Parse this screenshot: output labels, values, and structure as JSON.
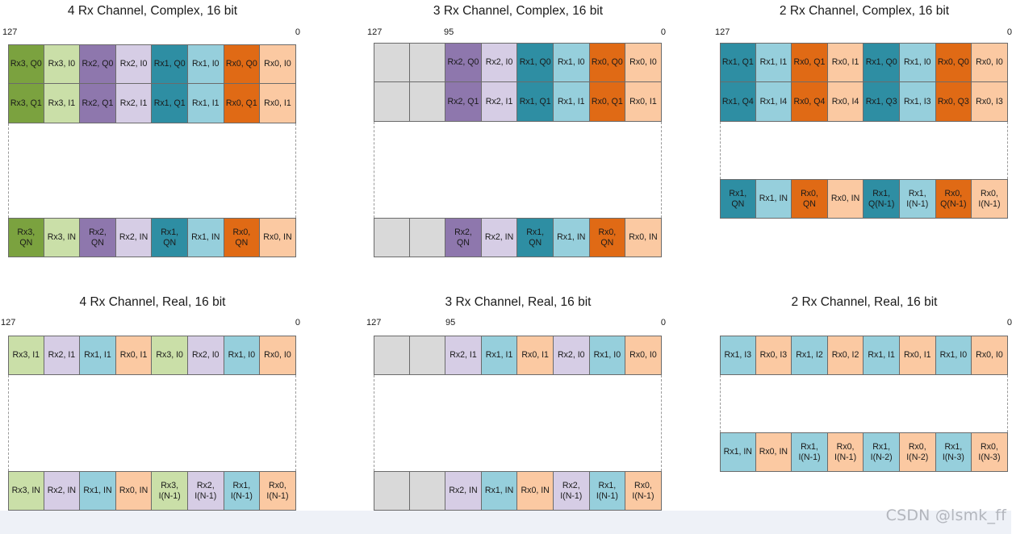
{
  "palette": {
    "rx3q": "#7ba23f",
    "rx3i": "#cadfa8",
    "rx2q": "#8e77ad",
    "rx2i": "#d6cde5",
    "rx1q": "#2e8ea3",
    "rx1i": "#96cfdc",
    "rx0q": "#e06a15",
    "rx0i": "#fbc9a2",
    "empty": "#d9d9d9"
  },
  "diagrams": [
    {
      "title": "4 Rx Channel, Complex, 16 bit",
      "msb": "127",
      "mid": "",
      "lsb": "0",
      "top_rows": [
        [
          [
            "Rx3, Q0",
            "rx3q"
          ],
          [
            "Rx3, I0",
            "rx3i"
          ],
          [
            "Rx2, Q0",
            "rx2q"
          ],
          [
            "Rx2, I0",
            "rx2i"
          ],
          [
            "Rx1, Q0",
            "rx1q"
          ],
          [
            "Rx1, I0",
            "rx1i"
          ],
          [
            "Rx0, Q0",
            "rx0q"
          ],
          [
            "Rx0, I0",
            "rx0i"
          ]
        ],
        [
          [
            "Rx3, Q1",
            "rx3q"
          ],
          [
            "Rx3, I1",
            "rx3i"
          ],
          [
            "Rx2, Q1",
            "rx2q"
          ],
          [
            "Rx2, I1",
            "rx2i"
          ],
          [
            "Rx1, Q1",
            "rx1q"
          ],
          [
            "Rx1, I1",
            "rx1i"
          ],
          [
            "Rx0, Q1",
            "rx0q"
          ],
          [
            "Rx0, I1",
            "rx0i"
          ]
        ]
      ],
      "bottom_rows": [
        [
          [
            "Rx3,\nQN",
            "rx3q"
          ],
          [
            "Rx3, IN",
            "rx3i"
          ],
          [
            "Rx2,\nQN",
            "rx2q"
          ],
          [
            "Rx2, IN",
            "rx2i"
          ],
          [
            "Rx1,\nQN",
            "rx1q"
          ],
          [
            "Rx1, IN",
            "rx1i"
          ],
          [
            "Rx0,\nQN",
            "rx0q"
          ],
          [
            "Rx0, IN",
            "rx0i"
          ]
        ]
      ]
    },
    {
      "title": "3 Rx Channel, Complex, 16 bit",
      "msb": "127",
      "mid": "95",
      "lsb": "0",
      "top_rows": [
        [
          [
            "",
            "empty"
          ],
          [
            "",
            "empty"
          ],
          [
            "Rx2, Q0",
            "rx2q"
          ],
          [
            "Rx2, I0",
            "rx2i"
          ],
          [
            "Rx1, Q0",
            "rx1q"
          ],
          [
            "Rx1, I0",
            "rx1i"
          ],
          [
            "Rx0, Q0",
            "rx0q"
          ],
          [
            "Rx0, I0",
            "rx0i"
          ]
        ],
        [
          [
            "",
            "empty"
          ],
          [
            "",
            "empty"
          ],
          [
            "Rx2, Q1",
            "rx2q"
          ],
          [
            "Rx2, I1",
            "rx2i"
          ],
          [
            "Rx1, Q1",
            "rx1q"
          ],
          [
            "Rx1, I1",
            "rx1i"
          ],
          [
            "Rx0, Q1",
            "rx0q"
          ],
          [
            "Rx0, I1",
            "rx0i"
          ]
        ]
      ],
      "bottom_rows": [
        [
          [
            "",
            "empty"
          ],
          [
            "",
            "empty"
          ],
          [
            "Rx2,\nQN",
            "rx2q"
          ],
          [
            "Rx2, IN",
            "rx2i"
          ],
          [
            "Rx1,\nQN",
            "rx1q"
          ],
          [
            "Rx1, IN",
            "rx1i"
          ],
          [
            "Rx0,\nQN",
            "rx0q"
          ],
          [
            "Rx0, IN",
            "rx0i"
          ]
        ]
      ]
    },
    {
      "title": "2 Rx Channel, Complex, 16 bit",
      "msb": "127",
      "mid": "",
      "lsb": "0",
      "top_rows": [
        [
          [
            "Rx1, Q1",
            "rx1q"
          ],
          [
            "Rx1, I1",
            "rx1i"
          ],
          [
            "Rx0, Q1",
            "rx0q"
          ],
          [
            "Rx0, I1",
            "rx0i"
          ],
          [
            "Rx1, Q0",
            "rx1q"
          ],
          [
            "Rx1, I0",
            "rx1i"
          ],
          [
            "Rx0, Q0",
            "rx0q"
          ],
          [
            "Rx0, I0",
            "rx0i"
          ]
        ],
        [
          [
            "Rx1, Q4",
            "rx1q"
          ],
          [
            "Rx1, I4",
            "rx1i"
          ],
          [
            "Rx0, Q4",
            "rx0q"
          ],
          [
            "Rx0, I4",
            "rx0i"
          ],
          [
            "Rx1, Q3",
            "rx1q"
          ],
          [
            "Rx1, I3",
            "rx1i"
          ],
          [
            "Rx0, Q3",
            "rx0q"
          ],
          [
            "Rx0, I3",
            "rx0i"
          ]
        ]
      ],
      "bottom_rows": [
        [
          [
            "Rx1,\nQN",
            "rx1q"
          ],
          [
            "Rx1, IN",
            "rx1i"
          ],
          [
            "Rx0,\nQN",
            "rx0q"
          ],
          [
            "Rx0, IN",
            "rx0i"
          ],
          [
            "Rx1,\nQ(N-1)",
            "rx1q"
          ],
          [
            "Rx1,\nI(N-1)",
            "rx1i"
          ],
          [
            "Rx0,\nQ(N-1)",
            "rx0q"
          ],
          [
            "Rx0,\nI(N-1)",
            "rx0i"
          ]
        ]
      ]
    },
    {
      "title": "4 Rx Channel, Real, 16 bit",
      "msb": "127",
      "mid": "",
      "lsb": "0",
      "top_rows": [
        [
          [
            "Rx3, I1",
            "rx3i"
          ],
          [
            "Rx2, I1",
            "rx2i"
          ],
          [
            "Rx1, I1",
            "rx1i"
          ],
          [
            "Rx0, I1",
            "rx0i"
          ],
          [
            "Rx3, I0",
            "rx3i"
          ],
          [
            "Rx2, I0",
            "rx2i"
          ],
          [
            "Rx1, I0",
            "rx1i"
          ],
          [
            "Rx0, I0",
            "rx0i"
          ]
        ]
      ],
      "bottom_rows": [
        [
          [
            "Rx3, IN",
            "rx3i"
          ],
          [
            "Rx2, IN",
            "rx2i"
          ],
          [
            "Rx1, IN",
            "rx1i"
          ],
          [
            "Rx0, IN",
            "rx0i"
          ],
          [
            "Rx3,\nI(N-1)",
            "rx3i"
          ],
          [
            "Rx2,\nI(N-1)",
            "rx2i"
          ],
          [
            "Rx1,\nI(N-1)",
            "rx1i"
          ],
          [
            "Rx0,\nI(N-1)",
            "rx0i"
          ]
        ]
      ]
    },
    {
      "title": "3 Rx Channel, Real, 16 bit",
      "msb": "127",
      "mid": "95",
      "lsb": "0",
      "top_rows": [
        [
          [
            "",
            "empty"
          ],
          [
            "",
            "empty"
          ],
          [
            "Rx2, I1",
            "rx2i"
          ],
          [
            "Rx1, I1",
            "rx1i"
          ],
          [
            "Rx0, I1",
            "rx0i"
          ],
          [
            "Rx2, I0",
            "rx2i"
          ],
          [
            "Rx1, I0",
            "rx1i"
          ],
          [
            "Rx0, I0",
            "rx0i"
          ]
        ]
      ],
      "bottom_rows": [
        [
          [
            "",
            "empty"
          ],
          [
            "",
            "empty"
          ],
          [
            "Rx2, IN",
            "rx2i"
          ],
          [
            "Rx1, IN",
            "rx1i"
          ],
          [
            "Rx0, IN",
            "rx0i"
          ],
          [
            "Rx2,\nI(N-1)",
            "rx2i"
          ],
          [
            "Rx1,\nI(N-1)",
            "rx1i"
          ],
          [
            "Rx0,\nI(N-1)",
            "rx0i"
          ]
        ]
      ]
    },
    {
      "title": "2 Rx Channel, Real, 16 bit",
      "msb": "",
      "mid": "",
      "lsb": "0",
      "top_rows": [
        [
          [
            "Rx1, I3",
            "rx1i"
          ],
          [
            "Rx0, I3",
            "rx0i"
          ],
          [
            "Rx1, I2",
            "rx1i"
          ],
          [
            "Rx0, I2",
            "rx0i"
          ],
          [
            "Rx1, I1",
            "rx1i"
          ],
          [
            "Rx0, I1",
            "rx0i"
          ],
          [
            "Rx1, I0",
            "rx1i"
          ],
          [
            "Rx0, I0",
            "rx0i"
          ]
        ]
      ],
      "bottom_rows": [
        [
          [
            "Rx1, IN",
            "rx1i"
          ],
          [
            "Rx0, IN",
            "rx0i"
          ],
          [
            "Rx1,\nI(N-1)",
            "rx1i"
          ],
          [
            "Rx0,\nI(N-1)",
            "rx0i"
          ],
          [
            "Rx1,\nI(N-2)",
            "rx1i"
          ],
          [
            "Rx0,\nI(N-2)",
            "rx0i"
          ],
          [
            "Rx1,\nI(N-3)",
            "rx1i"
          ],
          [
            "Rx0,\nI(N-3)",
            "rx0i"
          ]
        ]
      ]
    }
  ],
  "watermark": "CSDN @lsmk_ff"
}
